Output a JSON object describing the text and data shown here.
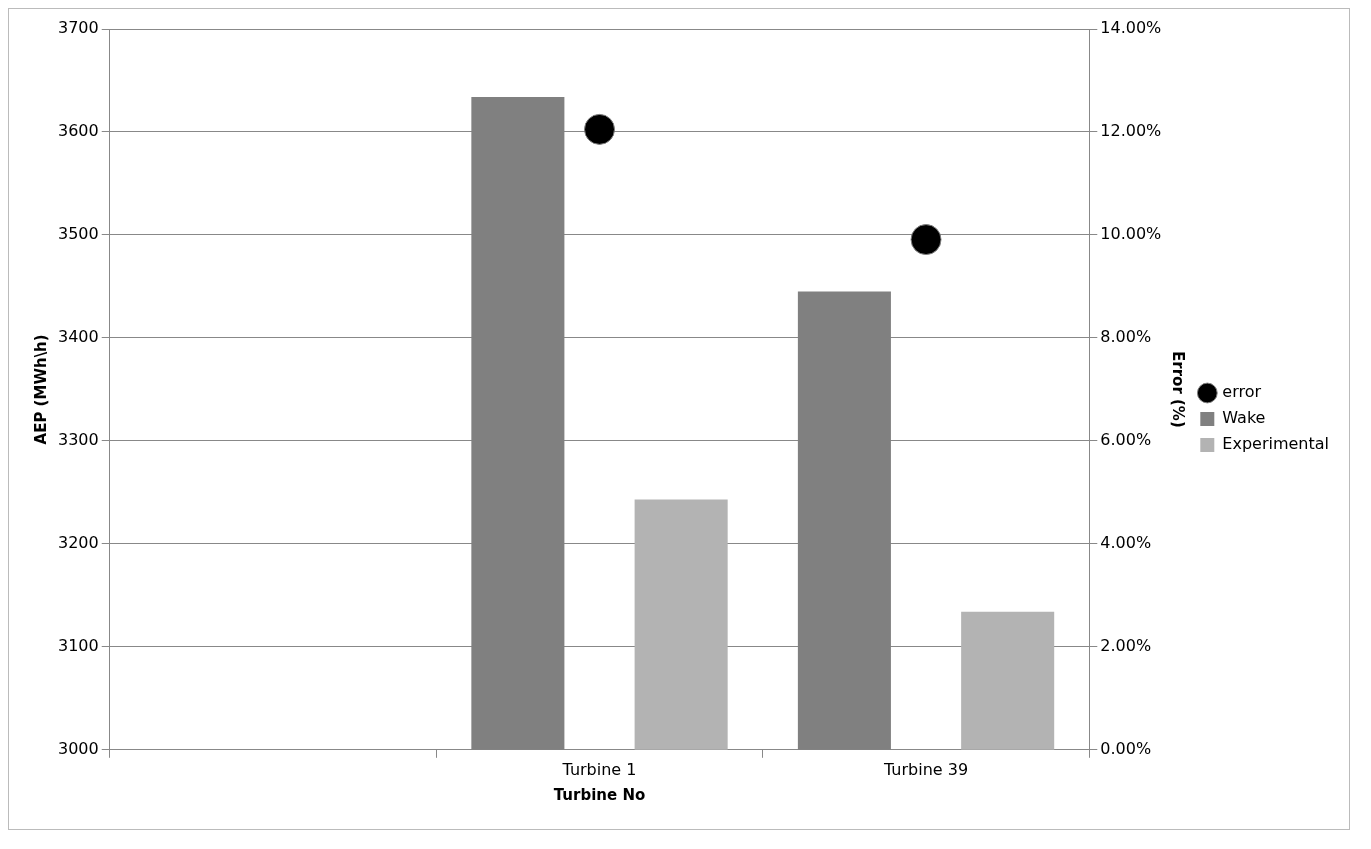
{
  "chart_data": {
    "type": "bar",
    "xlabel": "Turbine No",
    "ylabel": "AEP (MWh\\h)",
    "y2label": "Error (%)",
    "categories": [
      null,
      "Turbine 1",
      "Turbine 39"
    ],
    "series": [
      {
        "name": "Wake",
        "color": "#808080",
        "values": [
          null,
          3634,
          3445
        ]
      },
      {
        "name": "Experimental",
        "color": "#b3b3b3",
        "values": [
          null,
          3243,
          3134
        ]
      },
      {
        "name": "error",
        "type": "scatter",
        "axis": "y2",
        "color": "#000000",
        "values": [
          null,
          12.05,
          9.91
        ]
      }
    ],
    "ylim": [
      3000,
      3700
    ],
    "yticks": [
      3000,
      3100,
      3200,
      3300,
      3400,
      3500,
      3600,
      3700
    ],
    "y2lim": [
      0,
      14
    ],
    "y2ticks": [
      {
        "value": 0,
        "label": "0.00%"
      },
      {
        "value": 2,
        "label": "2.00%"
      },
      {
        "value": 4,
        "label": "4.00%"
      },
      {
        "value": 6,
        "label": "6.00%"
      },
      {
        "value": 8,
        "label": "8.00%"
      },
      {
        "value": 10,
        "label": "10.00%"
      },
      {
        "value": 12,
        "label": "12.00%"
      },
      {
        "value": 14,
        "label": "14.00%"
      }
    ],
    "grid": "y",
    "legend": "right",
    "marker": "circle"
  }
}
